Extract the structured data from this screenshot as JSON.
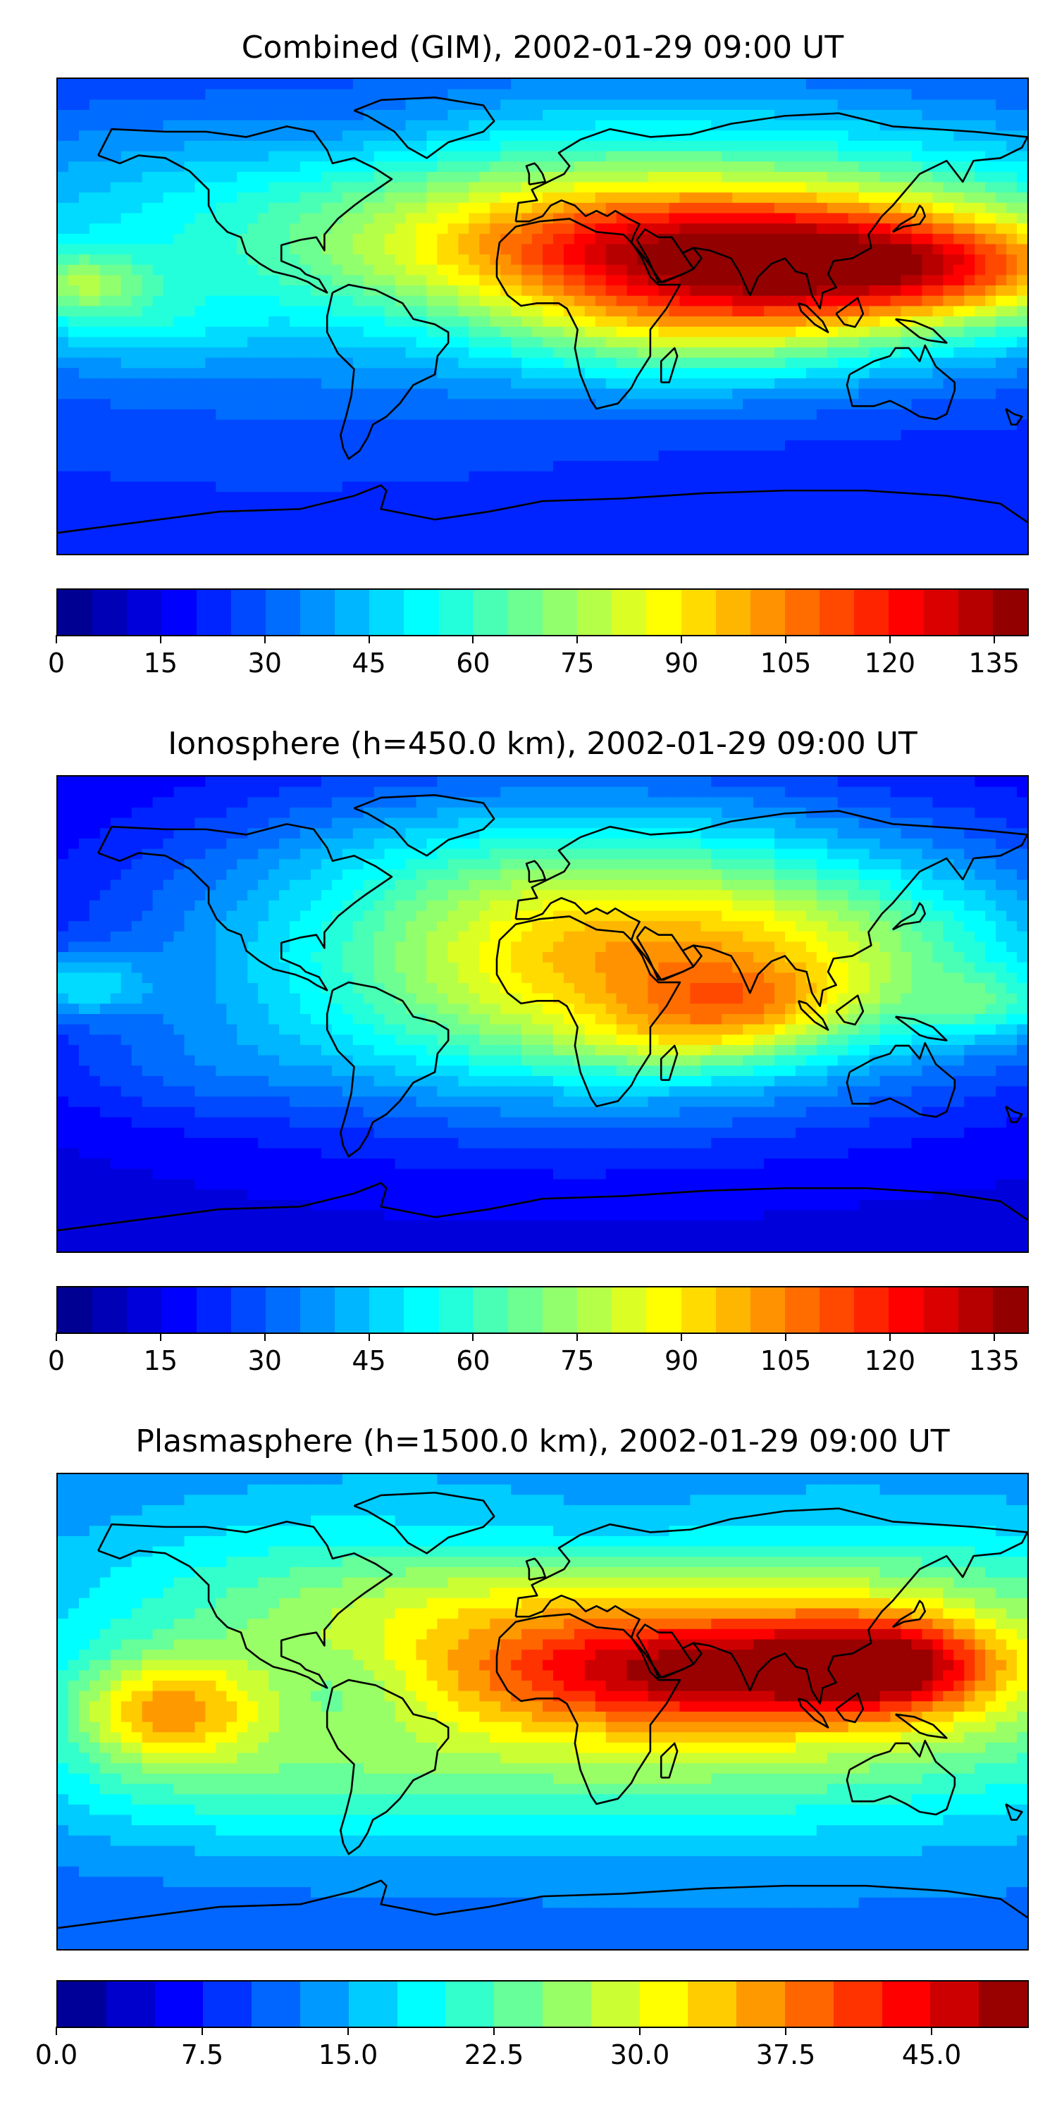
{
  "panels": [
    {
      "title": "Combined (GIM), 2002-01-29 09:00 UT",
      "colorbar": {
        "min": 0,
        "max": 140,
        "levels": 28,
        "ticks": [
          "0",
          "15",
          "30",
          "45",
          "60",
          "75",
          "90",
          "105",
          "120",
          "135"
        ]
      },
      "field": {
        "base": 20,
        "blobs": [
          [
            0.51,
            0.36,
            0.6,
            0.2,
            35
          ],
          [
            0.67,
            0.34,
            0.22,
            0.09,
            45
          ],
          [
            0.78,
            0.42,
            0.22,
            0.09,
            45
          ],
          [
            0.66,
            0.54,
            0.14,
            0.08,
            25
          ],
          [
            0.62,
            0.2,
            0.32,
            0.16,
            18
          ],
          [
            0.9,
            0.4,
            0.12,
            0.07,
            20
          ],
          [
            0.02,
            0.43,
            0.05,
            0.05,
            28
          ],
          [
            0.08,
            0.52,
            0.08,
            0.06,
            12
          ],
          [
            0.3,
            0.1,
            0.1,
            0.07,
            -6
          ],
          [
            0.2,
            0.8,
            0.3,
            0.15,
            4
          ]
        ],
        "colormap": "jet"
      }
    },
    {
      "title": "Ionosphere  (h=450.0 km), 2002-01-29 09:00 UT",
      "colorbar": {
        "min": 0,
        "max": 140,
        "levels": 28,
        "ticks": [
          "0",
          "15",
          "30",
          "45",
          "60",
          "75",
          "90",
          "105",
          "120",
          "135"
        ]
      },
      "field": {
        "base": 13,
        "blobs": [
          [
            0.47,
            0.36,
            0.24,
            0.22,
            44
          ],
          [
            0.67,
            0.38,
            0.3,
            0.2,
            45
          ],
          [
            0.71,
            0.48,
            0.09,
            0.06,
            25
          ],
          [
            0.64,
            0.56,
            0.09,
            0.05,
            15
          ],
          [
            0.78,
            0.36,
            0.15,
            0.1,
            12
          ],
          [
            0.96,
            0.48,
            0.05,
            0.05,
            20
          ],
          [
            0.02,
            0.44,
            0.05,
            0.05,
            25
          ],
          [
            0.33,
            0.35,
            0.12,
            0.12,
            -8
          ],
          [
            0.12,
            0.62,
            0.1,
            0.08,
            8
          ]
        ],
        "colormap": "jet"
      }
    },
    {
      "title": "Plasmasphere (h=1500.0 km), 2002-01-29 09:00 UT",
      "colorbar": {
        "min": 0,
        "max": 50,
        "levels": 20,
        "ticks": [
          "0.0",
          "7.5",
          "15.0",
          "22.5",
          "30.0",
          "37.5",
          "45.0"
        ]
      },
      "field": {
        "base": 11,
        "blobs": [
          [
            0.7,
            0.42,
            0.36,
            0.21,
            22
          ],
          [
            0.66,
            0.42,
            0.14,
            0.07,
            12
          ],
          [
            0.85,
            0.4,
            0.08,
            0.07,
            18
          ],
          [
            0.4,
            0.28,
            0.3,
            0.2,
            8
          ],
          [
            0.11,
            0.5,
            0.07,
            0.08,
            16
          ],
          [
            0.18,
            0.66,
            0.2,
            0.1,
            6
          ],
          [
            0.56,
            0.12,
            0.18,
            0.08,
            -6
          ],
          [
            0.3,
            0.45,
            0.06,
            0.07,
            -4
          ]
        ],
        "colormap": "jet"
      }
    }
  ]
}
